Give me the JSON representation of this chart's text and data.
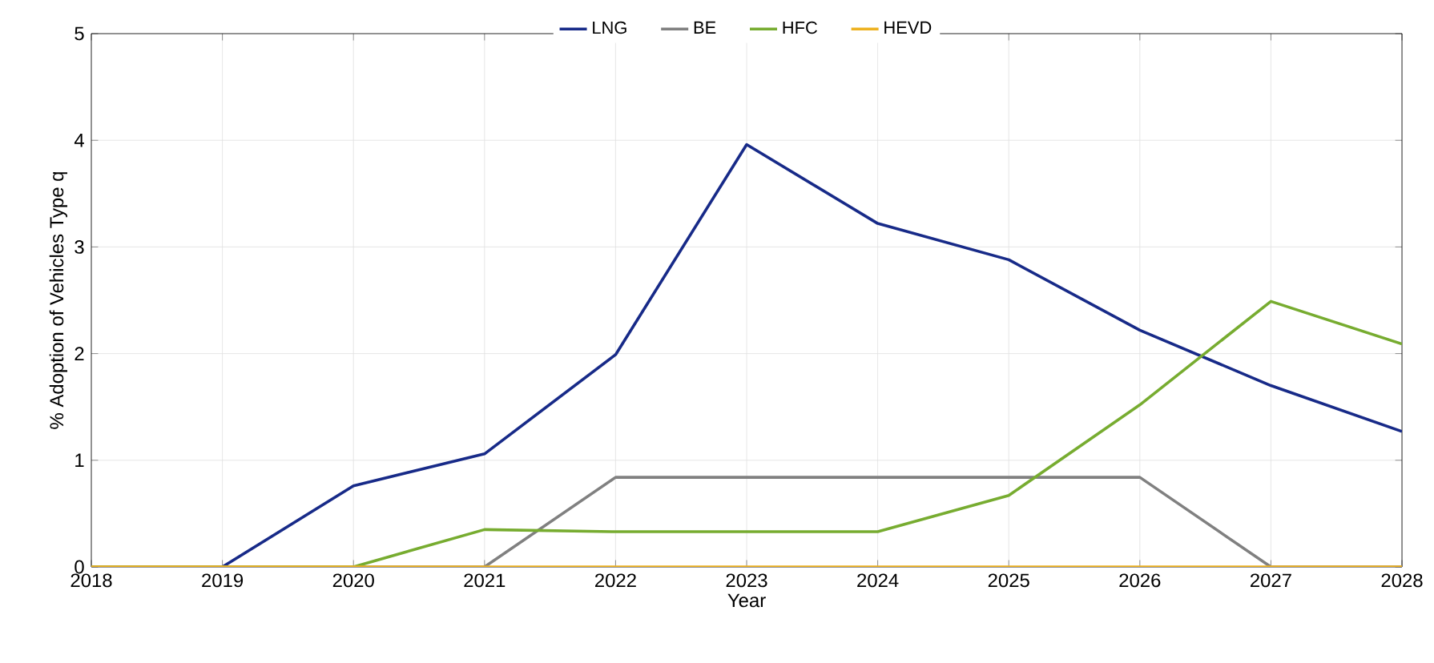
{
  "chart_data": {
    "type": "line",
    "xlabel": "Year",
    "ylabel": "% Adoption of Vehicles Type q",
    "x": [
      2018,
      2019,
      2020,
      2021,
      2022,
      2023,
      2024,
      2025,
      2026,
      2027,
      2028
    ],
    "series": [
      {
        "name": "LNG",
        "color": "#172a88",
        "values": [
          0,
          0,
          0.76,
          1.06,
          1.99,
          3.96,
          3.22,
          2.88,
          2.22,
          1.7,
          1.27
        ]
      },
      {
        "name": "BE",
        "color": "#808080",
        "values": [
          0,
          0,
          0,
          0,
          0.84,
          0.84,
          0.84,
          0.84,
          0.84,
          0,
          0
        ]
      },
      {
        "name": "HFC",
        "color": "#77ac30",
        "values": [
          0,
          0,
          0,
          0.35,
          0.33,
          0.33,
          0.33,
          0.67,
          1.52,
          2.49,
          2.09
        ]
      },
      {
        "name": "HEVD",
        "color": "#edb120",
        "values": [
          0,
          0,
          0,
          0,
          0,
          0,
          0,
          0,
          0,
          0,
          0
        ]
      }
    ],
    "xlim": [
      2018,
      2028
    ],
    "xticks": [
      2018,
      2019,
      2020,
      2021,
      2022,
      2023,
      2024,
      2025,
      2026,
      2027,
      2028
    ],
    "ylim": [
      0,
      5
    ],
    "yticks": [
      0,
      1,
      2,
      3,
      4,
      5
    ],
    "grid": true,
    "legend": "top",
    "marker": "none",
    "line_style": "solid"
  }
}
